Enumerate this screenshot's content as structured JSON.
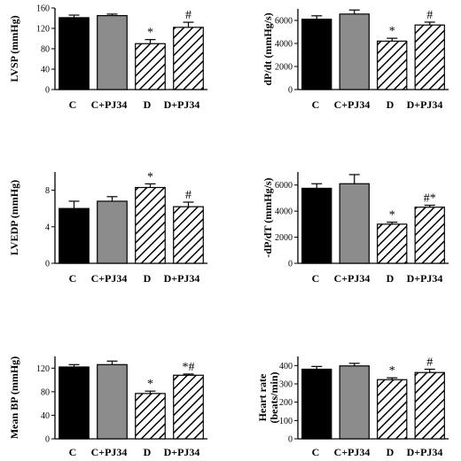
{
  "colors": {
    "control": "#000000",
    "control_pj34": "#8c8c8c",
    "diabetic": "hatch-black-on-white",
    "diabetic_pj34": "hatch-black-on-white",
    "axis": "#000000"
  },
  "chart_data": [
    {
      "id": "lvsp",
      "type": "bar",
      "ylabel": "LVSP (mmHg)",
      "categories": [
        "C",
        "C+PJ34",
        "D",
        "D+PJ34"
      ],
      "values": [
        141,
        145,
        90,
        122
      ],
      "errors": [
        5,
        3,
        8,
        10
      ],
      "annotations": [
        "",
        "",
        "*",
        "#"
      ],
      "ylim": [
        0,
        160
      ],
      "yticks": [
        "0",
        "40",
        "80",
        "120",
        "160"
      ],
      "grid": false
    },
    {
      "id": "dpdt",
      "type": "bar",
      "ylabel": "dP/dt (mmHg/s)",
      "categories": [
        "C",
        "C+PJ34",
        "D",
        "D+PJ34"
      ],
      "values": [
        6100,
        6550,
        4200,
        5600
      ],
      "errors": [
        300,
        350,
        250,
        250
      ],
      "annotations": [
        "",
        "",
        "*",
        "#"
      ],
      "ylim": [
        0,
        7000
      ],
      "yticks": [
        "0",
        "2000",
        "4000",
        "6000"
      ],
      "grid": false
    },
    {
      "id": "lvedp",
      "type": "bar",
      "ylabel": "LVEDP (mmHg)",
      "categories": [
        "C",
        "C+PJ34",
        "D",
        "D+PJ34"
      ],
      "values": [
        6.0,
        6.8,
        8.3,
        6.2
      ],
      "errors": [
        0.8,
        0.5,
        0.4,
        0.5
      ],
      "annotations": [
        "",
        "",
        "*",
        "#"
      ],
      "ylim": [
        0,
        10
      ],
      "yticks": [
        "0",
        "4",
        "8"
      ],
      "grid": false
    },
    {
      "id": "minus_dpdt",
      "type": "bar",
      "ylabel": "-dP/dT (mmHg/s)",
      "categories": [
        "C",
        "C+PJ34",
        "D",
        "D+PJ34"
      ],
      "values": [
        5750,
        6100,
        3000,
        4300
      ],
      "errors": [
        350,
        700,
        150,
        150
      ],
      "annotations": [
        "",
        "",
        "*",
        "#*"
      ],
      "ylim": [
        0,
        7000
      ],
      "yticks": [
        "0",
        "2000",
        "4000",
        "6000"
      ],
      "grid": false
    },
    {
      "id": "meanbp",
      "type": "bar",
      "ylabel": "Mean BP (mmHg)",
      "categories": [
        "C",
        "C+PJ34",
        "D",
        "D+PJ34"
      ],
      "values": [
        122,
        126,
        77,
        108
      ],
      "errors": [
        4,
        6,
        4,
        2
      ],
      "annotations": [
        "",
        "",
        "*",
        "*#"
      ],
      "ylim": [
        0,
        140
      ],
      "yticks": [
        "0",
        "40",
        "80",
        "120"
      ],
      "grid": false
    },
    {
      "id": "heartrate",
      "type": "bar",
      "ylabel": "Heart rate (beats/min)",
      "ylabel_lines": [
        "Heart rate",
        "(beats/min)"
      ],
      "categories": [
        "C",
        "C+PJ34",
        "D",
        "D+PJ34"
      ],
      "values": [
        380,
        398,
        323,
        362
      ],
      "errors": [
        15,
        14,
        10,
        18
      ],
      "annotations": [
        "",
        "",
        "*",
        "#"
      ],
      "ylim": [
        0,
        450
      ],
      "yticks": [
        "0",
        "100",
        "200",
        "300",
        "400"
      ],
      "grid": false
    }
  ]
}
